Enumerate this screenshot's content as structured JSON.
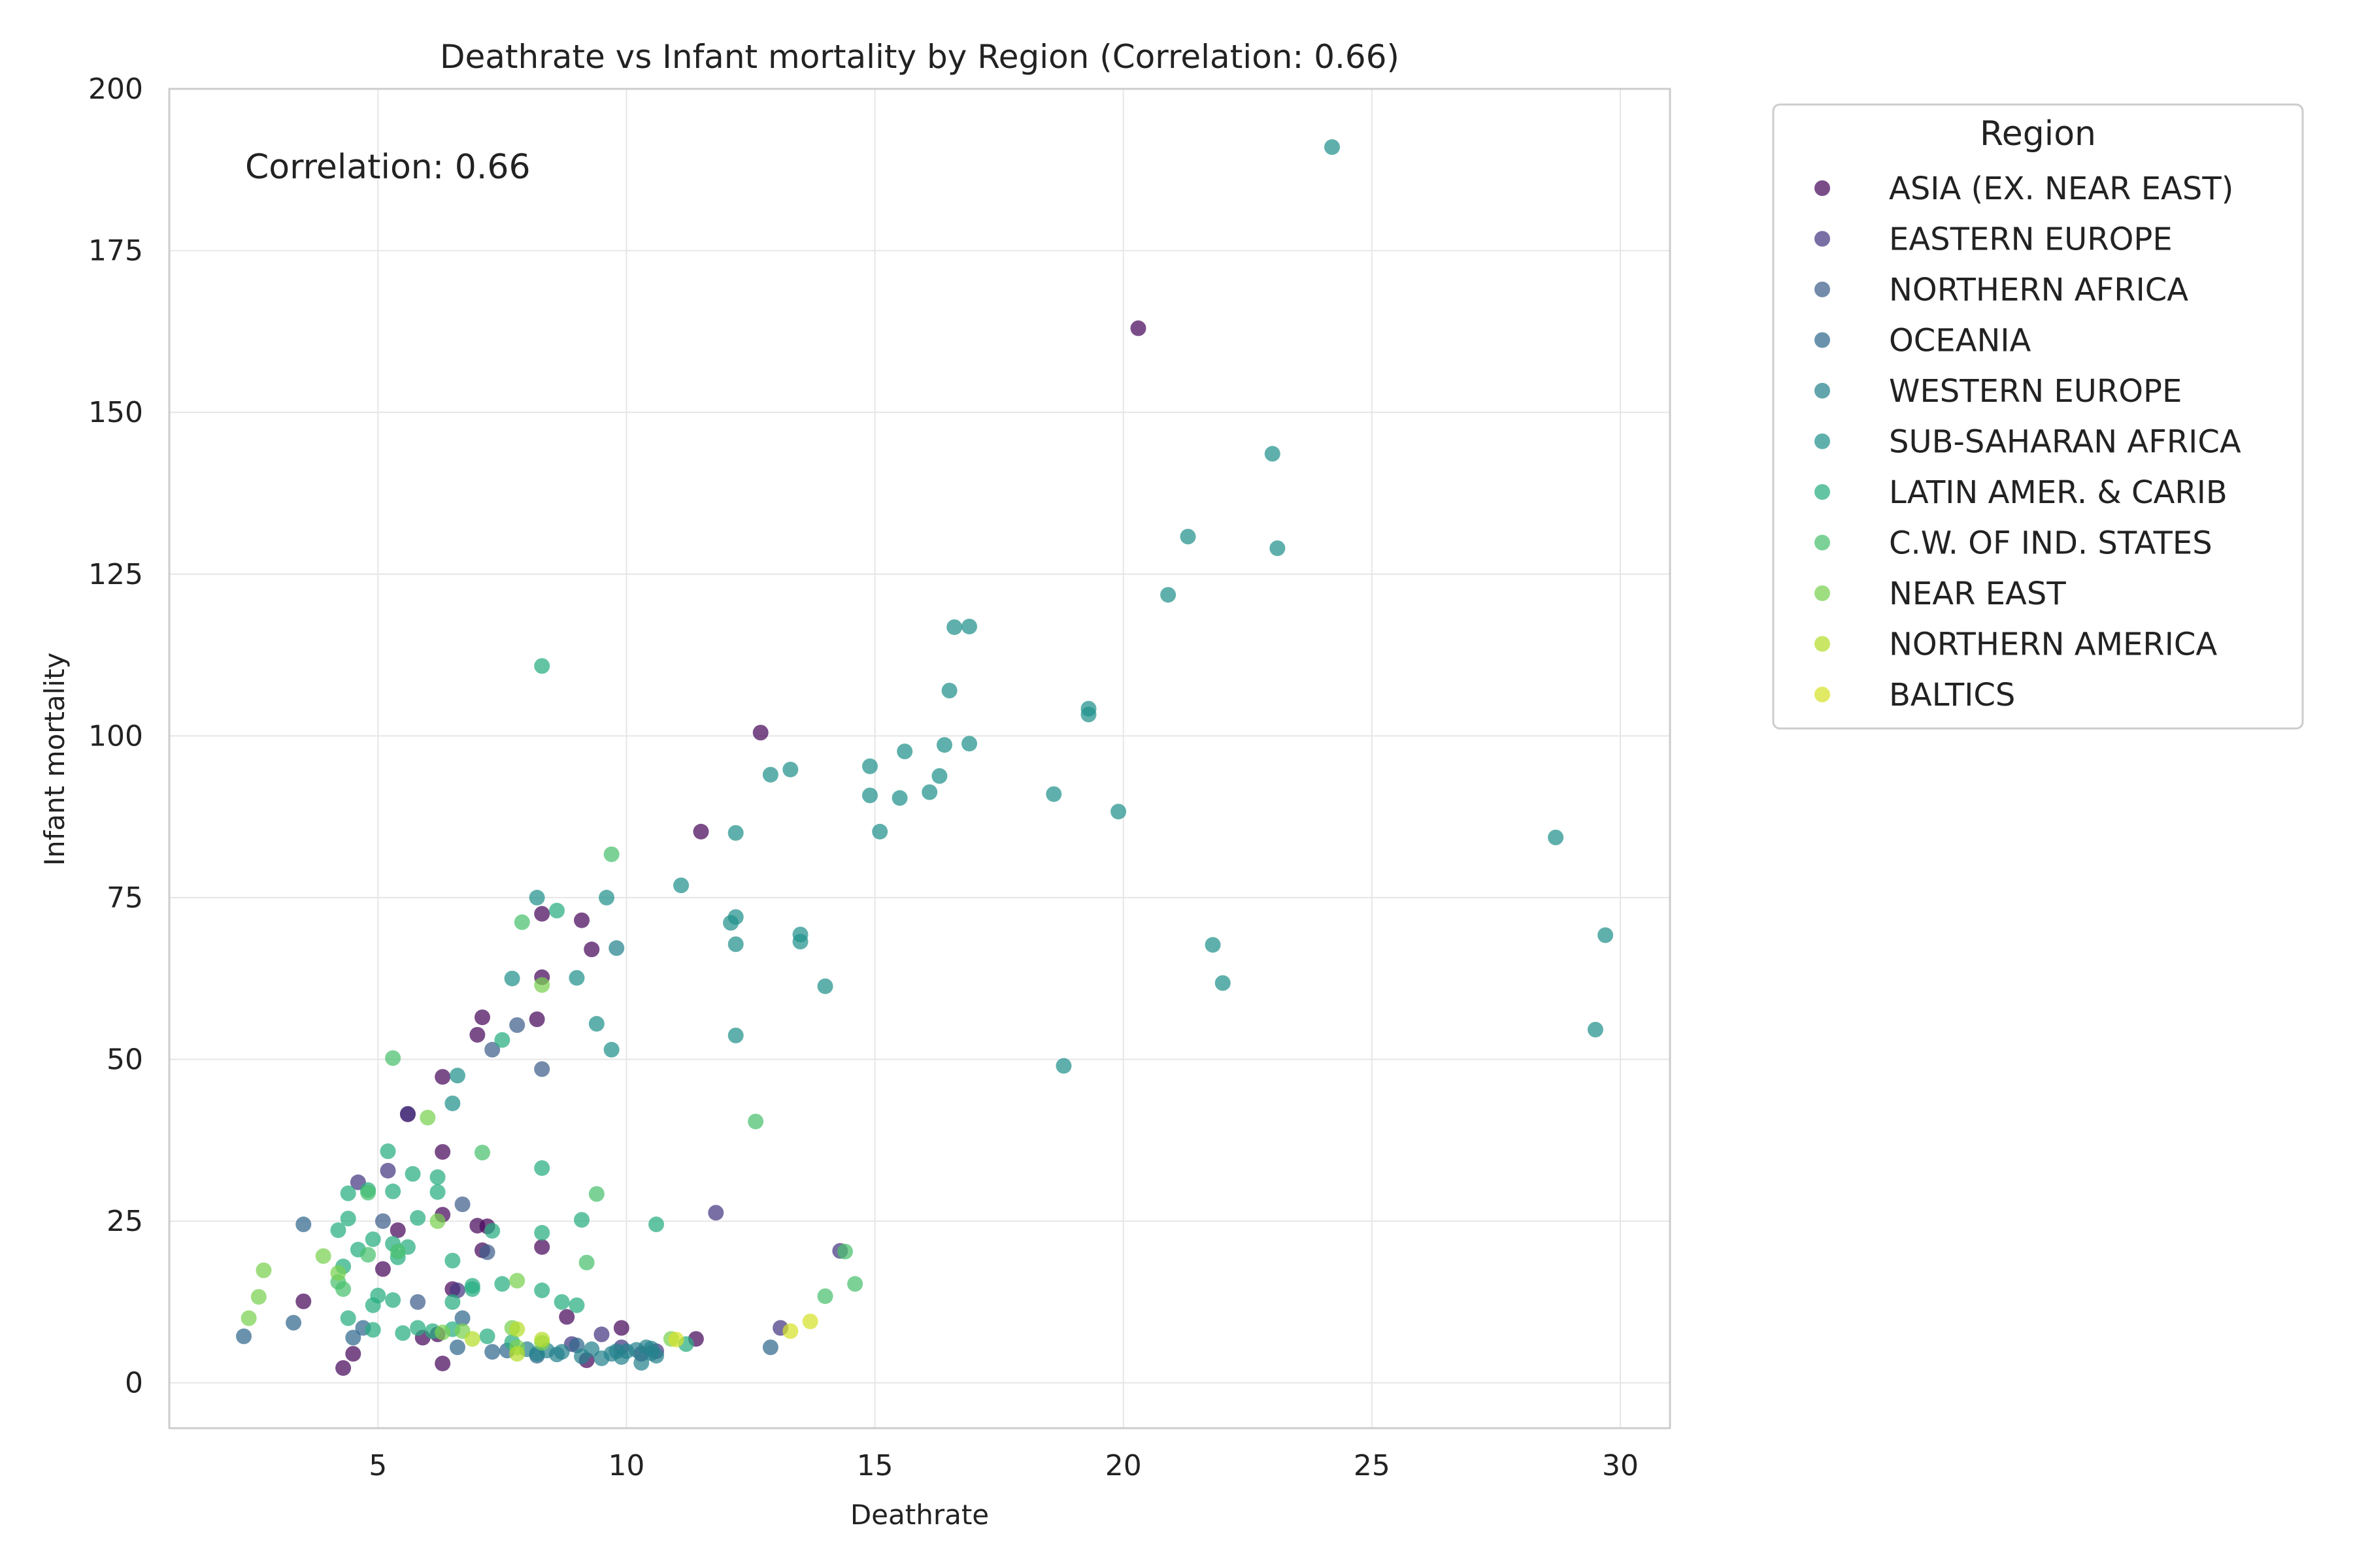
{
  "chart_data": {
    "type": "scatter",
    "title": "Deathrate vs Infant mortality by Region (Correlation: 0.66)",
    "xlabel": "Deathrate",
    "ylabel": "Infant mortality",
    "xlim": [
      0.8,
      31.0
    ],
    "ylim": [
      -7,
      200
    ],
    "xticks": [
      5,
      10,
      15,
      20,
      25,
      30
    ],
    "yticks": [
      0,
      25,
      50,
      75,
      100,
      125,
      150,
      175,
      200
    ],
    "grid": true,
    "annotation": "Correlation: 0.66",
    "legend": {
      "title": "Region",
      "placement": "outside-right"
    },
    "series": [
      {
        "name": "ASIA (EX. NEAR EAST)",
        "color": "#46085b",
        "points": [
          [
            20.3,
            163
          ],
          [
            12.7,
            100.5
          ],
          [
            11.5,
            85.2
          ],
          [
            8.3,
            72.5
          ],
          [
            9.1,
            71.5
          ],
          [
            9.3,
            67
          ],
          [
            8.3,
            62.7
          ],
          [
            7.1,
            56.5
          ],
          [
            8.2,
            56.2
          ],
          [
            7.0,
            53.8
          ],
          [
            6.3,
            47.3
          ],
          [
            5.6,
            41.5
          ],
          [
            6.3,
            35.7
          ],
          [
            6.3,
            26
          ],
          [
            5.4,
            23.6
          ],
          [
            7.0,
            24.3
          ],
          [
            7.2,
            24.2
          ],
          [
            8.3,
            21
          ],
          [
            5.1,
            17.6
          ],
          [
            3.5,
            12.6
          ],
          [
            5.9,
            7
          ],
          [
            6.2,
            7.5
          ],
          [
            6.3,
            3
          ],
          [
            4.3,
            2.3
          ],
          [
            4.5,
            4.5
          ],
          [
            9.2,
            3.5
          ],
          [
            11.4,
            6.8
          ],
          [
            9.9,
            8.5
          ],
          [
            8.8,
            10.2
          ],
          [
            7.1,
            20.5
          ],
          [
            6.5,
            14.5
          ]
        ]
      },
      {
        "name": "EASTERN EUROPE",
        "color": "#453781",
        "points": [
          [
            11.8,
            26.3
          ],
          [
            14.3,
            20.4
          ],
          [
            9.5,
            7.5
          ],
          [
            13.1,
            8.5
          ],
          [
            9.9,
            5.5
          ],
          [
            10.3,
            4.5
          ],
          [
            10.6,
            4.9
          ],
          [
            5.2,
            32.8
          ],
          [
            4.6,
            31
          ],
          [
            5.6,
            41.6
          ],
          [
            6.6,
            14.3
          ],
          [
            8.9,
            6
          ]
        ]
      },
      {
        "name": "NORTHERN AFRICA",
        "color": "#3e5e8b",
        "points": [
          [
            7.8,
            55.3
          ],
          [
            7.3,
            51.5
          ],
          [
            8.3,
            48.5
          ],
          [
            6.7,
            27.6
          ],
          [
            5.1,
            25
          ],
          [
            7.2,
            20.2
          ],
          [
            5.8,
            12.5
          ]
        ]
      },
      {
        "name": "OCEANIA",
        "color": "#31688e",
        "points": [
          [
            2.3,
            7.2
          ],
          [
            3.3,
            9.3
          ],
          [
            3.5,
            24.5
          ],
          [
            4.5,
            7
          ],
          [
            4.7,
            8.5
          ],
          [
            6.6,
            5.5
          ],
          [
            7.3,
            4.8
          ],
          [
            9.0,
            5.8
          ],
          [
            12.9,
            5.5
          ],
          [
            6.7,
            10
          ],
          [
            7.6,
            5
          ],
          [
            8.2,
            4.2
          ]
        ]
      },
      {
        "name": "WESTERN EUROPE",
        "color": "#26828e",
        "points": [
          [
            9.8,
            67.2
          ],
          [
            8.2,
            4.5
          ],
          [
            8.4,
            5
          ],
          [
            8.6,
            4.4
          ],
          [
            9.1,
            4.1
          ],
          [
            9.3,
            5.2
          ],
          [
            9.5,
            3.8
          ],
          [
            9.7,
            4.5
          ],
          [
            9.9,
            4
          ],
          [
            10.0,
            4.9
          ],
          [
            10.2,
            5.1
          ],
          [
            10.3,
            3.1
          ],
          [
            10.4,
            5.5
          ],
          [
            10.5,
            4.6
          ],
          [
            10.6,
            4.2
          ],
          [
            8.7,
            4.8
          ],
          [
            9.8,
            4.9
          ],
          [
            10.5,
            5.3
          ],
          [
            8.0,
            5.2
          ]
        ]
      },
      {
        "name": "SUB-SAHARAN AFRICA",
        "color": "#21918c",
        "points": [
          [
            24.2,
            191
          ],
          [
            23.0,
            143.6
          ],
          [
            23.1,
            129
          ],
          [
            21.3,
            130.8
          ],
          [
            20.9,
            121.8
          ],
          [
            16.6,
            116.8
          ],
          [
            16.9,
            116.9
          ],
          [
            16.5,
            107
          ],
          [
            19.3,
            104.2
          ],
          [
            19.3,
            103.3
          ],
          [
            16.9,
            98.8
          ],
          [
            16.4,
            98.6
          ],
          [
            15.6,
            97.6
          ],
          [
            14.9,
            95.3
          ],
          [
            13.3,
            94.8
          ],
          [
            12.9,
            94
          ],
          [
            16.3,
            93.8
          ],
          [
            16.1,
            91.3
          ],
          [
            18.6,
            91
          ],
          [
            14.9,
            90.8
          ],
          [
            15.5,
            90.4
          ],
          [
            19.9,
            88.3
          ],
          [
            12.2,
            85
          ],
          [
            15.1,
            85.2
          ],
          [
            28.7,
            84.3
          ],
          [
            11.1,
            76.9
          ],
          [
            9.6,
            75
          ],
          [
            8.2,
            75
          ],
          [
            12.2,
            72
          ],
          [
            12.1,
            71.1
          ],
          [
            13.5,
            69.3
          ],
          [
            29.7,
            69.2
          ],
          [
            13.5,
            68.2
          ],
          [
            12.2,
            67.8
          ],
          [
            21.8,
            67.7
          ],
          [
            22.0,
            61.8
          ],
          [
            14.0,
            61.3
          ],
          [
            9.0,
            62.6
          ],
          [
            7.7,
            62.5
          ],
          [
            9.4,
            55.5
          ],
          [
            12.2,
            53.7
          ],
          [
            29.5,
            54.6
          ],
          [
            9.7,
            51.5
          ],
          [
            18.8,
            49
          ],
          [
            6.6,
            47.5
          ],
          [
            6.5,
            43.2
          ]
        ]
      },
      {
        "name": "LATIN AMER. & CARIB",
        "color": "#27ad81",
        "points": [
          [
            8.3,
            110.8
          ],
          [
            8.6,
            73
          ],
          [
            7.5,
            53
          ],
          [
            5.2,
            35.8
          ],
          [
            5.7,
            32.3
          ],
          [
            6.2,
            31.8
          ],
          [
            8.3,
            33.2
          ],
          [
            6.2,
            29.5
          ],
          [
            5.3,
            29.6
          ],
          [
            4.4,
            29.3
          ],
          [
            4.8,
            29.8
          ],
          [
            5.8,
            25.5
          ],
          [
            4.4,
            25.4
          ],
          [
            9.1,
            25.2
          ],
          [
            10.6,
            24.5
          ],
          [
            7.3,
            23.5
          ],
          [
            8.3,
            23.2
          ],
          [
            4.2,
            23.6
          ],
          [
            4.9,
            22.2
          ],
          [
            5.3,
            21.5
          ],
          [
            5.6,
            21
          ],
          [
            4.6,
            20.6
          ],
          [
            5.4,
            19.4
          ],
          [
            6.5,
            18.9
          ],
          [
            4.3,
            18
          ],
          [
            5.0,
            13.5
          ],
          [
            6.9,
            15
          ],
          [
            6.9,
            14.5
          ],
          [
            7.5,
            15.3
          ],
          [
            8.3,
            14.3
          ],
          [
            8.7,
            12.5
          ],
          [
            9.0,
            12
          ],
          [
            5.3,
            12.8
          ],
          [
            6.5,
            12.5
          ],
          [
            4.9,
            12
          ],
          [
            4.4,
            10
          ],
          [
            5.8,
            8.5
          ],
          [
            6.5,
            8.3
          ],
          [
            6.1,
            8
          ],
          [
            7.2,
            7.2
          ],
          [
            5.5,
            7.7
          ],
          [
            4.9,
            8.2
          ],
          [
            7.7,
            6.3
          ],
          [
            11.2,
            6
          ]
        ]
      },
      {
        "name": "C.W. OF IND. STATES",
        "color": "#4ac16d",
        "points": [
          [
            9.7,
            81.7
          ],
          [
            7.9,
            71.2
          ],
          [
            5.3,
            50.2
          ],
          [
            7.1,
            35.6
          ],
          [
            9.4,
            29.2
          ],
          [
            4.8,
            29.4
          ],
          [
            4.3,
            14.5
          ],
          [
            14.4,
            20.3
          ],
          [
            14.6,
            15.3
          ],
          [
            14.0,
            13.4
          ],
          [
            9.2,
            18.6
          ],
          [
            12.6,
            40.4
          ],
          [
            5.4,
            20.3
          ],
          [
            4.8,
            19.8
          ],
          [
            4.2,
            15.6
          ]
        ]
      },
      {
        "name": "NEAR EAST",
        "color": "#79d151",
        "points": [
          [
            8.3,
            61.5
          ],
          [
            6.0,
            41
          ],
          [
            2.7,
            17.4
          ],
          [
            2.4,
            10
          ],
          [
            2.6,
            13.3
          ],
          [
            3.9,
            19.6
          ],
          [
            4.2,
            17
          ],
          [
            6.2,
            25
          ],
          [
            6.3,
            7.8
          ],
          [
            6.7,
            8
          ],
          [
            7.8,
            15.8
          ],
          [
            7.7,
            8.5
          ],
          [
            8.3,
            6.2
          ],
          [
            7.8,
            5.5
          ],
          [
            10.9,
            6.8
          ]
        ]
      },
      {
        "name": "NORTHERN AMERICA",
        "color": "#b6dd2b",
        "points": [
          [
            7.8,
            8.3
          ],
          [
            8.3,
            6.7
          ],
          [
            7.8,
            4.5
          ],
          [
            6.9,
            6.8
          ]
        ]
      },
      {
        "name": "BALTICS",
        "color": "#d6e22a",
        "points": [
          [
            13.3,
            8.0
          ],
          [
            13.7,
            9.5
          ],
          [
            11.0,
            6.7
          ]
        ]
      }
    ]
  }
}
